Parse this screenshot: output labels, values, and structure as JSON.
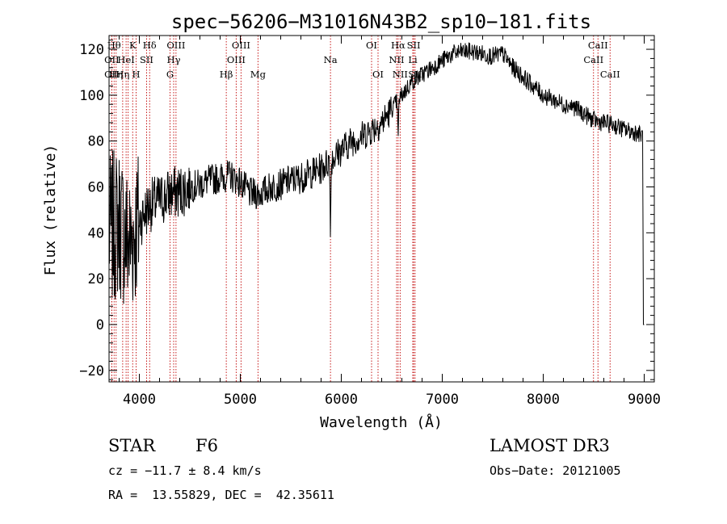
{
  "chart_data": {
    "type": "line",
    "title": "spec−56206−M31016N43B2_sp10−181.fits",
    "xlabel": "Wavelength (Å)",
    "ylabel": "Flux (relative)",
    "xlim": [
      3700,
      9100
    ],
    "ylim": [
      -25,
      126
    ],
    "xticks": [
      4000,
      5000,
      6000,
      7000,
      8000,
      9000
    ],
    "yticks": [
      -20,
      0,
      20,
      40,
      60,
      80,
      100,
      120
    ],
    "xtick_labels": [
      "4000",
      "5000",
      "6000",
      "7000",
      "8000",
      "9000"
    ],
    "ytick_labels": [
      "−20",
      "0",
      "20",
      "40",
      "60",
      "80",
      "100",
      "120"
    ],
    "continuum": [
      [
        3700,
        40
      ],
      [
        3800,
        45
      ],
      [
        3900,
        35
      ],
      [
        4000,
        45
      ],
      [
        4100,
        52
      ],
      [
        4200,
        54
      ],
      [
        4300,
        57
      ],
      [
        4400,
        58
      ],
      [
        4500,
        60
      ],
      [
        4600,
        61
      ],
      [
        4700,
        63
      ],
      [
        4800,
        64
      ],
      [
        4900,
        65
      ],
      [
        5000,
        62
      ],
      [
        5100,
        57
      ],
      [
        5200,
        57
      ],
      [
        5300,
        60
      ],
      [
        5400,
        61
      ],
      [
        5500,
        63
      ],
      [
        5600,
        64
      ],
      [
        5700,
        66
      ],
      [
        5800,
        68
      ],
      [
        5900,
        72
      ],
      [
        6000,
        76
      ],
      [
        6100,
        80
      ],
      [
        6200,
        82
      ],
      [
        6300,
        85
      ],
      [
        6400,
        88
      ],
      [
        6500,
        94
      ],
      [
        6600,
        100
      ],
      [
        6700,
        106
      ],
      [
        6800,
        109
      ],
      [
        6900,
        112
      ],
      [
        7000,
        115
      ],
      [
        7100,
        118
      ],
      [
        7200,
        119
      ],
      [
        7300,
        119
      ],
      [
        7400,
        118
      ],
      [
        7500,
        117
      ],
      [
        7600,
        118
      ],
      [
        7700,
        112
      ],
      [
        7800,
        108
      ],
      [
        7900,
        104
      ],
      [
        8000,
        100
      ],
      [
        8100,
        98
      ],
      [
        8200,
        96
      ],
      [
        8300,
        95
      ],
      [
        8400,
        92
      ],
      [
        8500,
        89
      ],
      [
        8600,
        88
      ],
      [
        8700,
        87
      ],
      [
        8800,
        85
      ],
      [
        8900,
        84
      ],
      [
        9000,
        82
      ]
    ],
    "absorption_features": [
      {
        "name": "Na",
        "wavelength": 5893,
        "depth": 30
      },
      {
        "name": "Halpha",
        "wavelength": 6563,
        "depth": 18
      }
    ],
    "line_markers": [
      {
        "wavelength": 3727,
        "label": "OII",
        "row": 2
      },
      {
        "wavelength": 3727,
        "label": "OII",
        "row": 1
      },
      {
        "wavelength": 3750,
        "label": "Hθ",
        "row": 0
      },
      {
        "wavelength": 3770,
        "label": "Hη",
        "row": 2
      },
      {
        "wavelength": 3835,
        "label": "Hη",
        "row": 2
      },
      {
        "wavelength": 3869,
        "label": "HeI",
        "row": 1
      },
      {
        "wavelength": 3889,
        "label": "",
        "row": -1
      },
      {
        "wavelength": 3934,
        "label": "K",
        "row": 0
      },
      {
        "wavelength": 3968,
        "label": "H",
        "row": 2
      },
      {
        "wavelength": 4072,
        "label": "SII",
        "row": 1
      },
      {
        "wavelength": 4102,
        "label": "Hδ",
        "row": 0
      },
      {
        "wavelength": 4304,
        "label": "G",
        "row": 2
      },
      {
        "wavelength": 4340,
        "label": "Hγ",
        "row": 1
      },
      {
        "wavelength": 4363,
        "label": "OIII",
        "row": 0
      },
      {
        "wavelength": 4861,
        "label": "Hβ",
        "row": 2
      },
      {
        "wavelength": 4959,
        "label": "OIII",
        "row": 1
      },
      {
        "wavelength": 5007,
        "label": "OIII",
        "row": 0
      },
      {
        "wavelength": 5175,
        "label": "Mg",
        "row": 2
      },
      {
        "wavelength": 5893,
        "label": "Na",
        "row": 1
      },
      {
        "wavelength": 6300,
        "label": "OI",
        "row": 0
      },
      {
        "wavelength": 6364,
        "label": "OI",
        "row": 2
      },
      {
        "wavelength": 6548,
        "label": "NII",
        "row": 1
      },
      {
        "wavelength": 6563,
        "label": "Hα",
        "row": 0
      },
      {
        "wavelength": 6583,
        "label": "NII",
        "row": 2
      },
      {
        "wavelength": 6708,
        "label": "Li",
        "row": 1
      },
      {
        "wavelength": 6717,
        "label": "SII",
        "row": 0
      },
      {
        "wavelength": 6731,
        "label": "SII",
        "row": 2
      },
      {
        "wavelength": 8498,
        "label": "CaII",
        "row": 1
      },
      {
        "wavelength": 8542,
        "label": "CaII",
        "row": 0
      },
      {
        "wavelength": 8662,
        "label": "CaII",
        "row": 2
      }
    ]
  },
  "info": {
    "class": "STAR",
    "subclass": "F6",
    "survey": "LAMOST DR3",
    "cz": "cz = −11.7 ± 8.4 km/s",
    "obs_date": "Obs−Date: 20121005",
    "coords": "RA =  13.55829, DEC =  42.35611"
  }
}
